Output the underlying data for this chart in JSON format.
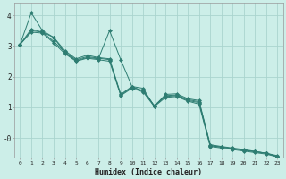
{
  "xlabel": "Humidex (Indice chaleur)",
  "background_color": "#cceee8",
  "grid_color": "#aad4ce",
  "line_color": "#2e7d72",
  "xlim": [
    -0.5,
    23.5
  ],
  "ylim": [
    -0.65,
    4.4
  ],
  "yticks": [
    0,
    1,
    2,
    3,
    4
  ],
  "ytick_labels": [
    "-0",
    "1",
    "2",
    "3",
    "4"
  ],
  "xticks": [
    0,
    1,
    2,
    3,
    4,
    5,
    6,
    7,
    8,
    9,
    10,
    11,
    12,
    13,
    14,
    15,
    16,
    17,
    18,
    19,
    20,
    21,
    22,
    23
  ],
  "series": [
    [
      3.05,
      4.08,
      3.5,
      3.28,
      2.85,
      2.58,
      2.7,
      2.62,
      2.58,
      1.42,
      1.68,
      1.62,
      1.02,
      1.42,
      1.44,
      1.28,
      1.22,
      -0.22,
      -0.28,
      -0.33,
      -0.38,
      -0.44,
      -0.5,
      -0.6
    ],
    [
      3.05,
      3.55,
      3.45,
      3.15,
      2.8,
      2.55,
      2.65,
      2.6,
      2.55,
      1.4,
      1.65,
      1.55,
      1.05,
      1.38,
      1.4,
      1.25,
      1.18,
      -0.25,
      -0.3,
      -0.35,
      -0.4,
      -0.45,
      -0.5,
      -0.58
    ],
    [
      3.05,
      3.5,
      3.45,
      3.28,
      2.78,
      2.52,
      2.62,
      2.58,
      3.5,
      2.55,
      1.68,
      1.52,
      1.05,
      1.35,
      1.38,
      1.22,
      1.15,
      -0.25,
      -0.3,
      -0.35,
      -0.4,
      -0.45,
      -0.5,
      -0.62
    ],
    [
      3.05,
      3.45,
      3.42,
      3.1,
      2.75,
      2.5,
      2.6,
      2.55,
      2.5,
      1.38,
      1.62,
      1.5,
      1.02,
      1.32,
      1.35,
      1.2,
      1.1,
      -0.28,
      -0.33,
      -0.38,
      -0.43,
      -0.48,
      -0.53,
      -0.62
    ]
  ]
}
